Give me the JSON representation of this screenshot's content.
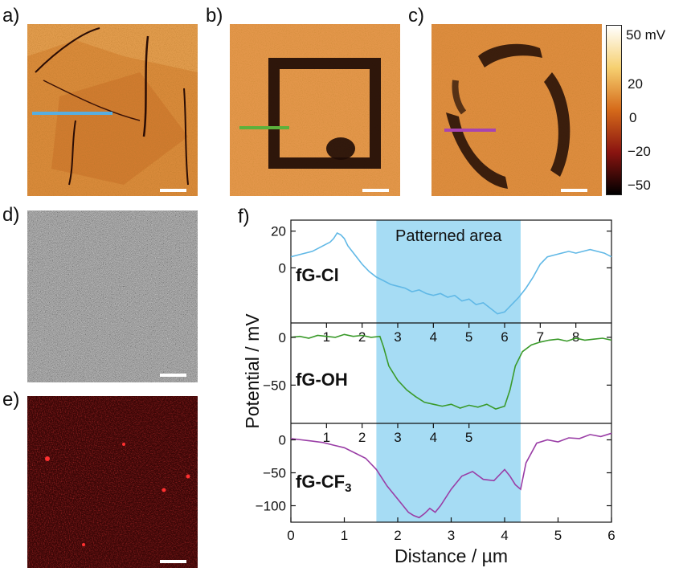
{
  "panels": {
    "a": "a)",
    "b": "b)",
    "c": "c)",
    "d": "d)",
    "e": "e)",
    "f": "f)"
  },
  "colorbar": {
    "ticks": [
      "50 mV",
      "20",
      "0",
      "−20",
      "−50"
    ],
    "colors": [
      "#ffffff",
      "#f6d070",
      "#d56a1a",
      "#8a1410",
      "#000000"
    ]
  },
  "line_colors": {
    "a": "#58aee0",
    "b": "#5cb13c",
    "c": "#a844b0"
  },
  "chart_data": [
    {
      "type": "line",
      "name": "fG-Cl",
      "label_main": "fG-Cl",
      "label_sub": "",
      "color": "#60b8e6",
      "x": [
        0,
        0.2,
        0.4,
        0.6,
        0.8,
        1.0,
        1.1,
        1.2,
        1.3,
        1.4,
        1.5,
        1.6,
        1.8,
        2.0,
        2.2,
        2.4,
        2.6,
        2.8,
        3.0,
        3.2,
        3.4,
        3.6,
        3.8,
        4.0,
        4.2,
        4.4,
        4.6,
        4.8,
        5.0,
        5.2,
        5.4,
        5.6,
        5.8,
        6.0,
        6.2,
        6.4,
        6.6,
        6.8,
        7.0,
        7.2,
        7.4,
        7.6,
        7.8,
        8.0,
        8.2,
        8.4,
        8.6,
        8.8,
        9.0
      ],
      "y": [
        6,
        7,
        8,
        9,
        11,
        13,
        14,
        16,
        19,
        18,
        16,
        12,
        7,
        2,
        -2,
        -5,
        -7,
        -9,
        -10,
        -11,
        -13,
        -12,
        -14,
        -15,
        -14,
        -16,
        -15,
        -18,
        -17,
        -20,
        -19,
        -22,
        -25,
        -24,
        -20,
        -16,
        -11,
        -5,
        2,
        6,
        7,
        8,
        9,
        8,
        9,
        10,
        9,
        8,
        6
      ],
      "xlim": [
        0,
        9
      ],
      "yticks": [
        0,
        20
      ],
      "ylim": [
        -30,
        26
      ],
      "top_xticks": [
        1,
        2,
        3,
        4,
        5,
        6,
        7,
        8
      ]
    },
    {
      "type": "line",
      "name": "fG-OH",
      "label_main": "fG-OH",
      "label_sub": "",
      "color": "#3a9a2a",
      "x": [
        0,
        0.25,
        0.5,
        0.75,
        1.0,
        1.25,
        1.5,
        1.75,
        2.0,
        2.25,
        2.5,
        2.6,
        2.75,
        3.0,
        3.25,
        3.5,
        3.75,
        4.0,
        4.25,
        4.5,
        4.75,
        5.0,
        5.25,
        5.5,
        5.75,
        6.0,
        6.15,
        6.3,
        6.5,
        6.75,
        7.0,
        7.25,
        7.5,
        7.75,
        8.0,
        8.25,
        8.5,
        8.75,
        9.0
      ],
      "y": [
        0,
        1,
        -1,
        2,
        1,
        0,
        3,
        1,
        2,
        0,
        1,
        -10,
        -30,
        -45,
        -55,
        -62,
        -68,
        -70,
        -72,
        -70,
        -74,
        -71,
        -73,
        -70,
        -75,
        -72,
        -55,
        -30,
        -15,
        -8,
        -5,
        -3,
        -2,
        -4,
        -1,
        -3,
        -2,
        -1,
        -3
      ],
      "xlim": [
        0,
        9
      ],
      "yticks": [
        -50,
        0
      ],
      "ylim": [
        -90,
        15
      ],
      "top_xticks": [
        1,
        2,
        3,
        4,
        5
      ]
    },
    {
      "type": "line",
      "name": "fG-CF3",
      "label_main": "fG-CF",
      "label_sub": "3",
      "color": "#9a3ea6",
      "x": [
        0,
        0.2,
        0.4,
        0.6,
        0.8,
        1.0,
        1.2,
        1.4,
        1.6,
        1.8,
        2.0,
        2.1,
        2.2,
        2.3,
        2.4,
        2.5,
        2.6,
        2.7,
        2.8,
        3.0,
        3.2,
        3.4,
        3.6,
        3.8,
        4.0,
        4.1,
        4.2,
        4.3,
        4.4,
        4.6,
        4.8,
        5.0,
        5.2,
        5.4,
        5.6,
        5.8,
        6.0
      ],
      "y": [
        2,
        0,
        -2,
        -4,
        -8,
        -12,
        -20,
        -28,
        -45,
        -70,
        -90,
        -100,
        -110,
        -115,
        -118,
        -112,
        -104,
        -110,
        -100,
        -75,
        -55,
        -48,
        -60,
        -62,
        -45,
        -55,
        -68,
        -75,
        -35,
        -5,
        0,
        -3,
        3,
        2,
        8,
        5,
        10
      ],
      "xlim": [
        0,
        6
      ],
      "yticks": [
        -100,
        -50,
        0
      ],
      "ylim": [
        -125,
        25
      ],
      "xticks": [
        0,
        1,
        2,
        3,
        4,
        5,
        6
      ]
    }
  ],
  "patterned": {
    "label": "Patterned area",
    "x_range_bottom_um": [
      1.6,
      4.3
    ]
  },
  "axes": {
    "ylabel": "Potential / mV",
    "xlabel": "Distance / µm"
  }
}
